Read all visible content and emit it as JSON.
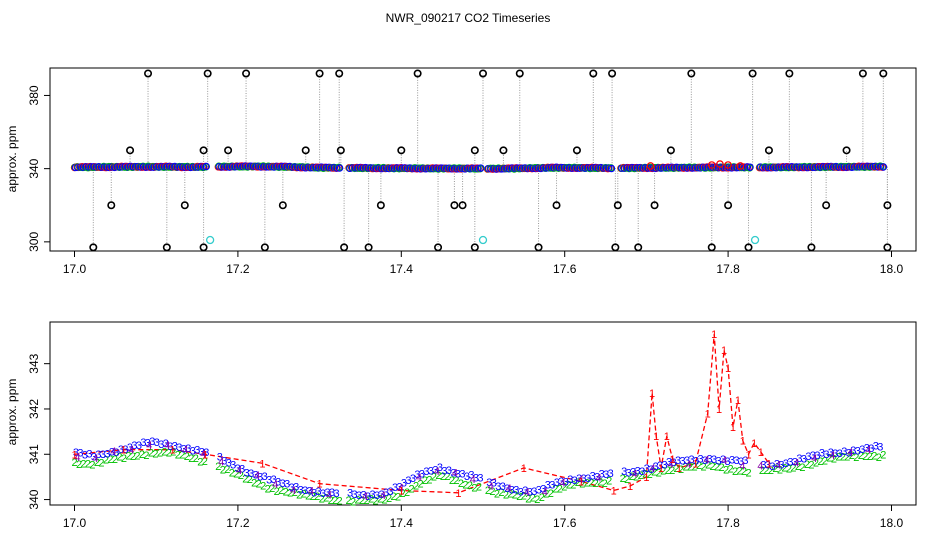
{
  "figure": {
    "title": "NWR_090217  CO2 Timeseries"
  },
  "colors": {
    "black": "#000000",
    "blue": "#0000ff",
    "red": "#ff0000",
    "green": "#00c000",
    "cyan": "#33cccc",
    "gray": "#999999"
  },
  "chart_data": [
    {
      "type": "scatter",
      "panel": "top",
      "title": "",
      "xlabel": "",
      "ylabel": "approx. ppm",
      "xlim": [
        16.97,
        18.03
      ],
      "ylim": [
        295,
        395
      ],
      "x_ticks": [
        "17.0",
        "17.2",
        "17.4",
        "17.6",
        "17.8",
        "18.0"
      ],
      "y_ticks": [
        "300",
        "340",
        "380"
      ],
      "grid": false,
      "series": [
        {
          "values": [
            340.8,
            340.9,
            341.0,
            341.0,
            340.9,
            341.1,
            341.2,
            341.0,
            340.6,
            340.4,
            340.3,
            340.2,
            340.1,
            340.1,
            340.0,
            340.2,
            340.5,
            340.4,
            340.3,
            340.4,
            340.5,
            340.6,
            340.7,
            340.7,
            340.8,
            340.9,
            341.0,
            341.1
          ],
          "x_start": 17.0,
          "x_end": 17.99
        }
      ],
      "outliers_high_x": [
        17.09,
        17.163,
        17.21,
        17.3,
        17.324,
        17.42,
        17.5,
        17.545,
        17.635,
        17.658,
        17.755,
        17.83,
        17.875,
        17.965,
        17.99
      ],
      "outliers_high_y": 392,
      "outliers_low_x": [
        17.023,
        17.113,
        17.158,
        17.233,
        17.33,
        17.36,
        17.445,
        17.49,
        17.568,
        17.662,
        17.69,
        17.78,
        17.825,
        17.902,
        17.995
      ],
      "outliers_low_y": 297,
      "outliers_mid_x": [
        17.045,
        17.068,
        17.135,
        17.158,
        17.188,
        17.255,
        17.283,
        17.326,
        17.375,
        17.4,
        17.465,
        17.475,
        17.49,
        17.525,
        17.59,
        17.615,
        17.665,
        17.71,
        17.73,
        17.8,
        17.85,
        17.92,
        17.945,
        17.995
      ],
      "outliers_mid_y": [
        320,
        350,
        320,
        350,
        350,
        320,
        350,
        350,
        320,
        350,
        320,
        320,
        350,
        350,
        320,
        350,
        320,
        320,
        350,
        320,
        350,
        320,
        350,
        320
      ],
      "cyan_points": [
        [
          17.166,
          301
        ],
        [
          17.5,
          301
        ],
        [
          17.833,
          301
        ]
      ],
      "red_bumps": [
        [
          17.705,
          341.5
        ],
        [
          17.78,
          342.0
        ],
        [
          17.79,
          342.5
        ],
        [
          17.8,
          342.0
        ],
        [
          17.815,
          341.5
        ]
      ]
    },
    {
      "type": "line",
      "panel": "bottom",
      "title": "",
      "xlabel": "",
      "ylabel": "approx. ppm",
      "xlim": [
        16.97,
        18.03
      ],
      "ylim": [
        339.88,
        343.92
      ],
      "x_ticks": [
        "17.0",
        "17.2",
        "17.4",
        "17.6",
        "17.8",
        "18.0"
      ],
      "y_ticks": [
        "340",
        "341",
        "342",
        "343"
      ],
      "grid": false,
      "series": [
        {
          "values": [
            341.0,
            340.95,
            341.05,
            341.15,
            341.25,
            341.2,
            341.1,
            341.0,
            340.8,
            340.6,
            340.45,
            340.3,
            340.2,
            340.15,
            340.1,
            340.08,
            340.12,
            340.3,
            340.55,
            340.7,
            340.55,
            340.45,
            340.3,
            340.2,
            340.15,
            340.35,
            340.45,
            340.5,
            340.55,
            340.6,
            340.7,
            340.8,
            340.85,
            340.9,
            340.85,
            340.8,
            340.75,
            340.8,
            340.9,
            341.0,
            341.05,
            341.1,
            341.15
          ],
          "x_start": 17.0,
          "x_end": 17.99
        },
        {
          "values": [
            340.9,
            340.85,
            340.95,
            341.05,
            341.1,
            341.1,
            341.0,
            340.9,
            340.7,
            340.5,
            340.35,
            340.25,
            340.15,
            340.1,
            340.05,
            340.05,
            340.05,
            340.2,
            340.45,
            340.6,
            340.45,
            340.35,
            340.2,
            340.15,
            340.1,
            340.3,
            340.4,
            340.45,
            340.5,
            340.55,
            340.65,
            340.75,
            340.8,
            340.8,
            340.75,
            340.7,
            340.7,
            340.75,
            340.85,
            340.95,
            341.0,
            341.05,
            341.05
          ],
          "x_start": 17.0,
          "x_end": 17.99
        }
      ],
      "red_series": [
        [
          17.0,
          341.0
        ],
        [
          17.06,
          341.1
        ],
        [
          17.12,
          341.1
        ],
        [
          17.16,
          341.0
        ],
        [
          17.23,
          340.8
        ],
        [
          17.3,
          340.35
        ],
        [
          17.4,
          340.2
        ],
        [
          17.47,
          340.15
        ],
        [
          17.55,
          340.7
        ],
        [
          17.62,
          340.4
        ],
        [
          17.66,
          340.2
        ],
        [
          17.68,
          340.3
        ],
        [
          17.7,
          340.5
        ],
        [
          17.707,
          342.35
        ],
        [
          17.712,
          341.4
        ],
        [
          17.718,
          340.7
        ],
        [
          17.725,
          341.4
        ],
        [
          17.732,
          340.9
        ],
        [
          17.74,
          340.7
        ],
        [
          17.76,
          340.8
        ],
        [
          17.775,
          341.9
        ],
        [
          17.783,
          343.65
        ],
        [
          17.789,
          342.0
        ],
        [
          17.795,
          343.3
        ],
        [
          17.8,
          342.9
        ],
        [
          17.806,
          341.6
        ],
        [
          17.812,
          342.2
        ],
        [
          17.818,
          341.3
        ],
        [
          17.825,
          341.0
        ],
        [
          17.832,
          341.25
        ],
        [
          17.84,
          341.05
        ],
        [
          17.85,
          340.8
        ]
      ]
    }
  ]
}
